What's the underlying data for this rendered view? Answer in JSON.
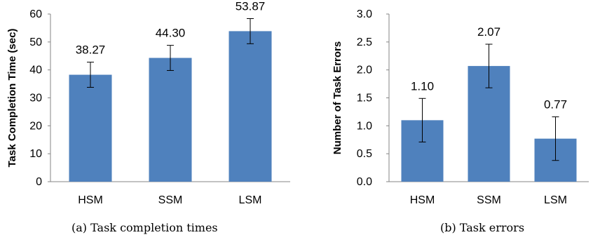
{
  "chart_data": [
    {
      "type": "bar",
      "categories": [
        "HSM",
        "SSM",
        "LSM"
      ],
      "values": [
        38.27,
        44.3,
        53.87
      ],
      "value_labels": [
        "38.27",
        "44.30",
        "53.87"
      ],
      "error": [
        4.5,
        4.5,
        4.5
      ],
      "ylabel": "Task Completion Time (sec)",
      "xlabel": "",
      "ylim": [
        0,
        60
      ],
      "yticks": [
        "0",
        "10",
        "20",
        "30",
        "40",
        "50",
        "60"
      ],
      "grid": false,
      "bar_color": "#4F81BD",
      "caption": "(a) Task completion times"
    },
    {
      "type": "bar",
      "categories": [
        "HSM",
        "SSM",
        "LSM"
      ],
      "values": [
        1.1,
        2.07,
        0.77
      ],
      "value_labels": [
        "1.10",
        "2.07",
        "0.77"
      ],
      "error": [
        0.39,
        0.39,
        0.39
      ],
      "ylabel": "Number of Task Errors",
      "xlabel": "",
      "ylim": [
        0,
        3.0
      ],
      "yticks": [
        "0.0",
        "0.5",
        "1.0",
        "1.5",
        "2.0",
        "2.5",
        "3.0"
      ],
      "grid": false,
      "bar_color": "#4F81BD",
      "caption": "(b) Task errors"
    }
  ]
}
